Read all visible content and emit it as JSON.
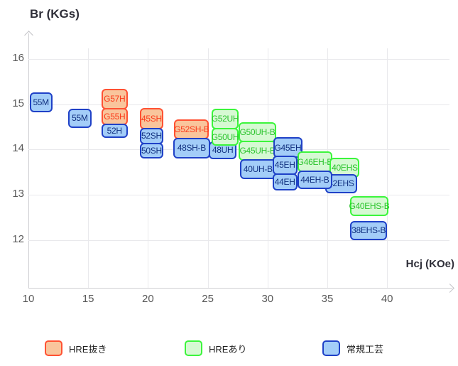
{
  "chart_data": {
    "type": "scatter",
    "title": "",
    "xlabel": "Hcj (KOe)",
    "ylabel": "Br (KGs)",
    "x_ticks": [
      10,
      15,
      20,
      25,
      30,
      35,
      40
    ],
    "y_ticks": [
      16,
      15,
      14,
      13,
      12
    ],
    "xlim": [
      10,
      41
    ],
    "ylim": [
      11.4,
      16.6
    ],
    "grid": true,
    "legend_position": "bottom",
    "series": [
      {
        "key": "hre_removed",
        "name": "HRE抜き",
        "fill": "#f9c59c",
        "border": "#ff5233",
        "text": "#fa3c1c"
      },
      {
        "key": "hre_added",
        "name": "HREあり",
        "fill": "#d6f9d3",
        "border": "#3cf53c",
        "text": "#2bc42d"
      },
      {
        "key": "conventional",
        "name": "常規工芸",
        "fill": "#a3cdf8",
        "border": "#1f41c7",
        "text": "#11307f"
      }
    ],
    "boxes": [
      {
        "label": "55M",
        "series": "conventional",
        "hcj": [
          10.1,
          12.0
        ],
        "br": [
          14.82,
          15.26
        ]
      },
      {
        "label": "55M",
        "series": "conventional",
        "hcj": [
          13.3,
          15.3
        ],
        "br": [
          14.48,
          14.9
        ]
      },
      {
        "label": "G57H",
        "series": "hre_removed",
        "hcj": [
          16.1,
          18.3
        ],
        "br": [
          14.89,
          15.34
        ]
      },
      {
        "label": "G55H",
        "series": "hre_removed",
        "hcj": [
          16.1,
          18.3
        ],
        "br": [
          14.54,
          14.92
        ]
      },
      {
        "label": "52H",
        "series": "conventional",
        "hcj": [
          16.1,
          18.3
        ],
        "br": [
          14.26,
          14.57
        ]
      },
      {
        "label": "45SH",
        "series": "hre_removed",
        "hcj": [
          19.3,
          21.3
        ],
        "br": [
          14.45,
          14.92
        ]
      },
      {
        "label": "52SH",
        "series": "conventional",
        "hcj": [
          19.3,
          21.3
        ],
        "br": [
          14.12,
          14.48
        ]
      },
      {
        "label": "50SH",
        "series": "conventional",
        "hcj": [
          19.3,
          21.3
        ],
        "br": [
          13.8,
          14.15
        ]
      },
      {
        "label": "G52SH-B",
        "series": "hre_removed",
        "hcj": [
          22.2,
          25.1
        ],
        "br": [
          14.23,
          14.67
        ]
      },
      {
        "label": "48SH-B",
        "series": "conventional",
        "hcj": [
          22.1,
          25.2
        ],
        "br": [
          13.8,
          14.26
        ]
      },
      {
        "label": "48UH",
        "series": "conventional",
        "hcj": [
          25.1,
          27.4
        ],
        "br": [
          13.79,
          14.18
        ]
      },
      {
        "label": "G52UH",
        "series": "hre_added",
        "hcj": [
          25.3,
          27.6
        ],
        "br": [
          14.45,
          14.9
        ]
      },
      {
        "label": "G50UH",
        "series": "hre_added",
        "hcj": [
          25.3,
          27.6
        ],
        "br": [
          14.08,
          14.48
        ]
      },
      {
        "label": "G50UH-B",
        "series": "hre_added",
        "hcj": [
          27.6,
          30.7
        ],
        "br": [
          14.16,
          14.6
        ]
      },
      {
        "label": "G45UH-B",
        "series": "hre_added",
        "hcj": [
          27.6,
          30.7
        ],
        "br": [
          13.75,
          14.19
        ]
      },
      {
        "label": "G45EH",
        "series": "conventional",
        "hcj": [
          30.5,
          32.9
        ],
        "br": [
          13.82,
          14.27
        ]
      },
      {
        "label": "40UH-B",
        "series": "conventional",
        "hcj": [
          27.7,
          30.7
        ],
        "br": [
          13.35,
          13.79
        ]
      },
      {
        "label": "45EH",
        "series": "conventional",
        "hcj": [
          30.4,
          32.5
        ],
        "br": [
          13.44,
          13.87
        ]
      },
      {
        "label": "44EH",
        "series": "conventional",
        "hcj": [
          30.4,
          32.5
        ],
        "br": [
          13.1,
          13.47
        ]
      },
      {
        "label": "G46EH-B",
        "series": "hre_added",
        "hcj": [
          32.5,
          35.4
        ],
        "br": [
          13.5,
          13.96
        ]
      },
      {
        "label": "40EHS",
        "series": "hre_added",
        "hcj": [
          35.2,
          37.7
        ],
        "br": [
          13.38,
          13.82
        ]
      },
      {
        "label": "42EHS",
        "series": "conventional",
        "hcj": [
          34.8,
          37.5
        ],
        "br": [
          13.03,
          13.46
        ]
      },
      {
        "label": "44EH-B",
        "series": "conventional",
        "hcj": [
          32.5,
          35.4
        ],
        "br": [
          13.13,
          13.53
        ]
      },
      {
        "label": "G40EHS-B",
        "series": "hre_added",
        "hcj": [
          36.9,
          40.1
        ],
        "br": [
          12.53,
          12.97
        ]
      },
      {
        "label": "38EHS-B",
        "series": "conventional",
        "hcj": [
          36.9,
          40.0
        ],
        "br": [
          12.0,
          12.42
        ]
      }
    ]
  }
}
